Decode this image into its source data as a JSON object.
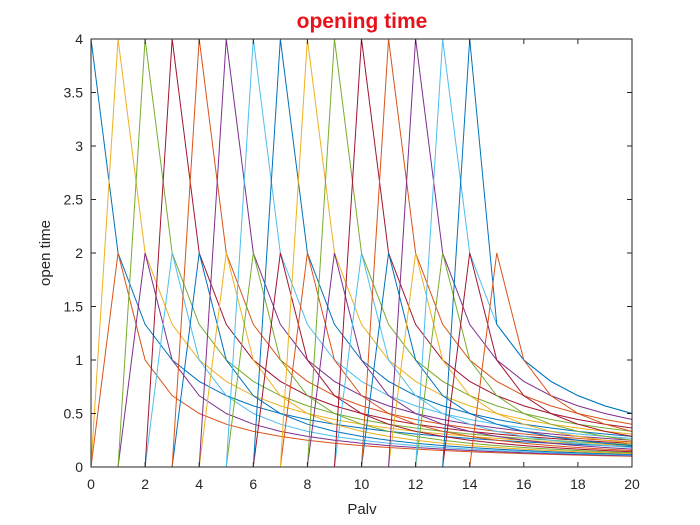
{
  "chart_data": {
    "type": "line",
    "title": "opening time",
    "xlabel": "Palv",
    "ylabel": "open time",
    "xlim": [
      0,
      20
    ],
    "ylim": [
      0,
      4
    ],
    "xticks": [
      "0",
      "2",
      "4",
      "6",
      "8",
      "10",
      "12",
      "14",
      "16",
      "18",
      "20"
    ],
    "yticks": [
      "0",
      "0.5",
      "1",
      "1.5",
      "2",
      "2.5",
      "3",
      "3.5",
      "4"
    ],
    "grid": false,
    "x": [
      0,
      1,
      2,
      3,
      4,
      5,
      6,
      7,
      8,
      9,
      10,
      11,
      12,
      13,
      14,
      15,
      16,
      17,
      18,
      19,
      20
    ],
    "series": [
      {
        "color": "#0072bd",
        "values": [
          4,
          2,
          1.333,
          1,
          0.8,
          0.667,
          0.571,
          0.5,
          0.444,
          0.4,
          0.364,
          0.333,
          0.308,
          0.286,
          0.267,
          0.25,
          0.235,
          0.222,
          0.211,
          0.2,
          0.19
        ]
      },
      {
        "color": "#d95319",
        "values": [
          0,
          2,
          1,
          0.667,
          0.5,
          0.4,
          0.333,
          0.286,
          0.25,
          0.222,
          0.2,
          0.182,
          0.167,
          0.154,
          0.143,
          0.133,
          0.125,
          0.118,
          0.111,
          0.105,
          0.1
        ]
      },
      {
        "color": "#edb120",
        "values": [
          0,
          4,
          2,
          1.333,
          1,
          0.8,
          0.667,
          0.571,
          0.5,
          0.444,
          0.4,
          0.364,
          0.333,
          0.308,
          0.286,
          0.267,
          0.25,
          0.235,
          0.222,
          0.211,
          0.2
        ]
      },
      {
        "color": "#7e2f8e",
        "values": [
          0,
          0,
          2,
          1,
          0.667,
          0.5,
          0.4,
          0.333,
          0.286,
          0.25,
          0.222,
          0.2,
          0.182,
          0.167,
          0.154,
          0.143,
          0.133,
          0.125,
          0.118,
          0.111,
          0.105
        ]
      },
      {
        "color": "#77ac30",
        "values": [
          0,
          0,
          4,
          2,
          1.333,
          1,
          0.8,
          0.667,
          0.571,
          0.5,
          0.444,
          0.4,
          0.364,
          0.333,
          0.308,
          0.286,
          0.267,
          0.25,
          0.235,
          0.222,
          0.211
        ]
      },
      {
        "color": "#4dbeee",
        "values": [
          0,
          0,
          0,
          2,
          1,
          0.667,
          0.5,
          0.4,
          0.333,
          0.286,
          0.25,
          0.222,
          0.2,
          0.182,
          0.167,
          0.154,
          0.143,
          0.133,
          0.125,
          0.118,
          0.111
        ]
      },
      {
        "color": "#a2142f",
        "values": [
          0,
          0,
          0,
          4,
          2,
          1.333,
          1,
          0.8,
          0.667,
          0.571,
          0.5,
          0.444,
          0.4,
          0.364,
          0.333,
          0.308,
          0.286,
          0.267,
          0.25,
          0.235,
          0.222
        ]
      },
      {
        "color": "#0072bd",
        "values": [
          0,
          0,
          0,
          0,
          2,
          1,
          0.667,
          0.5,
          0.4,
          0.333,
          0.286,
          0.25,
          0.222,
          0.2,
          0.182,
          0.167,
          0.154,
          0.143,
          0.133,
          0.125,
          0.118
        ]
      },
      {
        "color": "#d95319",
        "values": [
          0,
          0,
          0,
          0,
          4,
          2,
          1.333,
          1,
          0.8,
          0.667,
          0.571,
          0.5,
          0.444,
          0.4,
          0.364,
          0.333,
          0.308,
          0.286,
          0.267,
          0.25,
          0.235
        ]
      },
      {
        "color": "#edb120",
        "values": [
          0,
          0,
          0,
          0,
          0,
          2,
          1,
          0.667,
          0.5,
          0.4,
          0.333,
          0.286,
          0.25,
          0.222,
          0.2,
          0.182,
          0.167,
          0.154,
          0.143,
          0.133,
          0.125
        ]
      },
      {
        "color": "#7e2f8e",
        "values": [
          0,
          0,
          0,
          0,
          0,
          4,
          2,
          1.333,
          1,
          0.8,
          0.667,
          0.571,
          0.5,
          0.444,
          0.4,
          0.364,
          0.333,
          0.308,
          0.286,
          0.267,
          0.25
        ]
      },
      {
        "color": "#77ac30",
        "values": [
          0,
          0,
          0,
          0,
          0,
          0,
          2,
          1,
          0.667,
          0.5,
          0.4,
          0.333,
          0.286,
          0.25,
          0.222,
          0.2,
          0.182,
          0.167,
          0.154,
          0.143,
          0.133
        ]
      },
      {
        "color": "#4dbeee",
        "values": [
          0,
          0,
          0,
          0,
          0,
          0,
          4,
          2,
          1.333,
          1,
          0.8,
          0.667,
          0.571,
          0.5,
          0.444,
          0.4,
          0.364,
          0.333,
          0.308,
          0.286,
          0.267
        ]
      },
      {
        "color": "#a2142f",
        "values": [
          0,
          0,
          0,
          0,
          0,
          0,
          0,
          2,
          1,
          0.667,
          0.5,
          0.4,
          0.333,
          0.286,
          0.25,
          0.222,
          0.2,
          0.182,
          0.167,
          0.154,
          0.143
        ]
      },
      {
        "color": "#0072bd",
        "values": [
          0,
          0,
          0,
          0,
          0,
          0,
          0,
          4,
          2,
          1.333,
          1,
          0.8,
          0.667,
          0.571,
          0.5,
          0.444,
          0.4,
          0.364,
          0.333,
          0.308,
          0.286
        ]
      },
      {
        "color": "#d95319",
        "values": [
          0,
          0,
          0,
          0,
          0,
          0,
          0,
          0,
          2,
          1,
          0.667,
          0.5,
          0.4,
          0.333,
          0.286,
          0.25,
          0.222,
          0.2,
          0.182,
          0.167,
          0.154
        ]
      },
      {
        "color": "#edb120",
        "values": [
          0,
          0,
          0,
          0,
          0,
          0,
          0,
          0,
          4,
          2,
          1.333,
          1,
          0.8,
          0.667,
          0.571,
          0.5,
          0.444,
          0.4,
          0.364,
          0.333,
          0.308
        ]
      },
      {
        "color": "#7e2f8e",
        "values": [
          0,
          0,
          0,
          0,
          0,
          0,
          0,
          0,
          0,
          2,
          1,
          0.667,
          0.5,
          0.4,
          0.333,
          0.286,
          0.25,
          0.222,
          0.2,
          0.182,
          0.167
        ]
      },
      {
        "color": "#77ac30",
        "values": [
          0,
          0,
          0,
          0,
          0,
          0,
          0,
          0,
          0,
          4,
          2,
          1.333,
          1,
          0.8,
          0.667,
          0.571,
          0.5,
          0.444,
          0.4,
          0.364,
          0.333
        ]
      },
      {
        "color": "#4dbeee",
        "values": [
          0,
          0,
          0,
          0,
          0,
          0,
          0,
          0,
          0,
          0,
          2,
          1,
          0.667,
          0.5,
          0.4,
          0.333,
          0.286,
          0.25,
          0.222,
          0.2,
          0.182
        ]
      },
      {
        "color": "#a2142f",
        "values": [
          0,
          0,
          0,
          0,
          0,
          0,
          0,
          0,
          0,
          0,
          4,
          2,
          1.333,
          1,
          0.8,
          0.667,
          0.571,
          0.5,
          0.444,
          0.4,
          0.364
        ]
      },
      {
        "color": "#0072bd",
        "values": [
          0,
          0,
          0,
          0,
          0,
          0,
          0,
          0,
          0,
          0,
          0,
          2,
          1,
          0.667,
          0.5,
          0.4,
          0.333,
          0.286,
          0.25,
          0.222,
          0.2
        ]
      },
      {
        "color": "#d95319",
        "values": [
          0,
          0,
          0,
          0,
          0,
          0,
          0,
          0,
          0,
          0,
          0,
          4,
          2,
          1.333,
          1,
          0.8,
          0.667,
          0.571,
          0.5,
          0.444,
          0.4
        ]
      },
      {
        "color": "#edb120",
        "values": [
          0,
          0,
          0,
          0,
          0,
          0,
          0,
          0,
          0,
          0,
          0,
          0,
          2,
          1,
          0.667,
          0.5,
          0.4,
          0.333,
          0.286,
          0.25,
          0.222
        ]
      },
      {
        "color": "#7e2f8e",
        "values": [
          0,
          0,
          0,
          0,
          0,
          0,
          0,
          0,
          0,
          0,
          0,
          0,
          4,
          2,
          1.333,
          1,
          0.8,
          0.667,
          0.571,
          0.5,
          0.444
        ]
      },
      {
        "color": "#77ac30",
        "values": [
          0,
          0,
          0,
          0,
          0,
          0,
          0,
          0,
          0,
          0,
          0,
          0,
          0,
          2,
          1,
          0.667,
          0.5,
          0.4,
          0.333,
          0.286,
          0.25
        ]
      },
      {
        "color": "#4dbeee",
        "values": [
          0,
          0,
          0,
          0,
          0,
          0,
          0,
          0,
          0,
          0,
          0,
          0,
          0,
          4,
          2,
          1.333,
          1,
          0.8,
          0.667,
          0.571,
          0.5
        ]
      },
      {
        "color": "#a2142f",
        "values": [
          0,
          0,
          0,
          0,
          0,
          0,
          0,
          0,
          0,
          0,
          0,
          0,
          0,
          0,
          2,
          1,
          0.667,
          0.5,
          0.4,
          0.333,
          0.286
        ]
      },
      {
        "color": "#0072bd",
        "values": [
          0,
          0,
          0,
          0,
          0,
          0,
          0,
          0,
          0,
          0,
          0,
          0,
          0,
          0,
          4,
          1.333,
          1,
          0.8,
          0.667,
          0.571,
          0.5
        ]
      },
      {
        "color": "#d95319",
        "values": [
          0,
          0,
          0,
          0,
          0,
          0,
          0,
          0,
          0,
          0,
          0,
          0,
          0,
          0,
          0,
          2,
          1,
          0.667,
          0.5,
          0.4,
          0.333
        ]
      }
    ]
  }
}
